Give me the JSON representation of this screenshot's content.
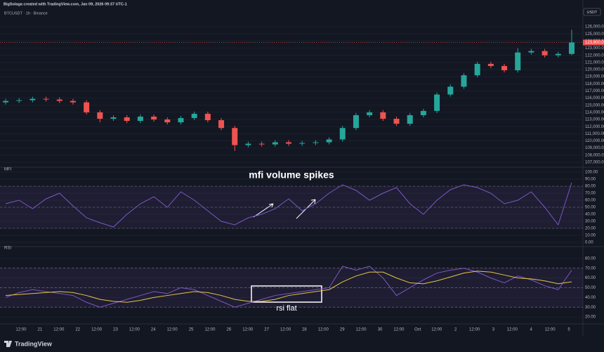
{
  "header": {
    "caption": "BigSolaga created with TradingView.com, Jan 09, 2026 09:37 UTC-1",
    "symbol": "BTCUSDT · 1h · Binance",
    "currency": "USDT",
    "brand": "TradingView"
  },
  "time_axis": [
    "12:00",
    "21",
    "12:00",
    "22",
    "12:00",
    "23",
    "12:00",
    "24",
    "12:00",
    "25",
    "12:00",
    "26",
    "12:00",
    "27",
    "12:00",
    "28",
    "12:00",
    "29",
    "12:00",
    "30",
    "12:00",
    "Oct",
    "12:00",
    "2",
    "12:00",
    "3",
    "12:00",
    "4",
    "12:00",
    "5"
  ],
  "chart_data": [
    {
      "type": "candlestick",
      "up_color": "#26a69a",
      "down_color": "#ef5350",
      "last_price_label": "123,800.00",
      "open": [
        115400,
        115600,
        115700,
        115900,
        115800,
        115600,
        115400,
        114000,
        113100,
        113300,
        112800,
        113400,
        113000,
        112600,
        113200,
        113800,
        112900,
        111800,
        109400,
        109600,
        109500,
        109800,
        109600,
        109700,
        109800,
        110200,
        111800,
        113600,
        114000,
        113100,
        112400,
        113600,
        114200,
        116500,
        117600,
        119200,
        120800,
        120500,
        119900,
        122400,
        122600,
        122000,
        122200
      ],
      "high": [
        115900,
        116000,
        116200,
        116200,
        116100,
        115900,
        115700,
        114300,
        113600,
        113600,
        113700,
        113700,
        113300,
        113500,
        114100,
        114100,
        113200,
        112100,
        109900,
        109900,
        110100,
        110100,
        110000,
        110100,
        110500,
        112100,
        113900,
        114300,
        114300,
        113400,
        113900,
        114500,
        116800,
        117900,
        119500,
        121100,
        121100,
        120800,
        123000,
        122900,
        122900,
        122500,
        125600
      ],
      "low": [
        115100,
        115300,
        115400,
        115500,
        115300,
        115100,
        113700,
        112600,
        112800,
        112500,
        112500,
        112700,
        112300,
        112300,
        112900,
        112600,
        111500,
        108600,
        109100,
        109200,
        109200,
        109300,
        109300,
        109400,
        109500,
        109900,
        111500,
        113300,
        112800,
        112100,
        112100,
        113300,
        113900,
        116200,
        117300,
        118900,
        120200,
        119600,
        119600,
        122100,
        121700,
        121700,
        122000
      ],
      "close": [
        115600,
        115700,
        115900,
        115800,
        115600,
        115400,
        114000,
        113100,
        113300,
        112800,
        113400,
        113000,
        112600,
        113200,
        113800,
        112900,
        111800,
        109400,
        109600,
        109500,
        109800,
        109600,
        109700,
        109800,
        110200,
        111800,
        113600,
        114000,
        113100,
        112400,
        113600,
        114200,
        116500,
        117600,
        119200,
        120800,
        120500,
        119900,
        122400,
        122600,
        122000,
        122200,
        123800
      ],
      "ylim": [
        106500,
        127000
      ],
      "yticks": [
        {
          "value": 107000,
          "label": "107,000.00"
        },
        {
          "value": 108000,
          "label": "108,000.00"
        },
        {
          "value": 109000,
          "label": "109,000.00"
        },
        {
          "value": 110000,
          "label": "110,000.00"
        },
        {
          "value": 111000,
          "label": "111,000.00"
        },
        {
          "value": 112000,
          "label": "112,000.00"
        },
        {
          "value": 113000,
          "label": "113,000.00"
        },
        {
          "value": 114000,
          "label": "114,000.00"
        },
        {
          "value": 115000,
          "label": "115,000.00"
        },
        {
          "value": 116000,
          "label": "116,000.00"
        },
        {
          "value": 117000,
          "label": "117,000.00"
        },
        {
          "value": 118000,
          "label": "118,000.00"
        },
        {
          "value": 119000,
          "label": "119,000.00"
        },
        {
          "value": 120000,
          "label": "120,000.00"
        },
        {
          "value": 121000,
          "label": "121,000.00"
        },
        {
          "value": 122000,
          "label": "122,000.00"
        },
        {
          "value": 123000,
          "label": "123,000.00"
        },
        {
          "value": 124000,
          "label": "124,000.00"
        },
        {
          "value": 125000,
          "label": "125,000.00"
        },
        {
          "value": 126000,
          "label": "126,000.00"
        }
      ]
    },
    {
      "type": "line",
      "title": "MFI",
      "annotation": "mfi volume spikes",
      "color": "#7e57c2",
      "bands": [
        20,
        50,
        80
      ],
      "values": [
        55,
        60,
        48,
        62,
        70,
        52,
        35,
        28,
        22,
        40,
        55,
        65,
        50,
        72,
        60,
        45,
        30,
        25,
        35,
        40,
        48,
        62,
        45,
        55,
        70,
        82,
        74,
        60,
        70,
        78,
        55,
        40,
        60,
        75,
        82,
        78,
        70,
        55,
        60,
        72,
        50,
        25,
        85
      ],
      "ylim": [
        -3,
        103
      ],
      "yticks": [
        {
          "value": 0,
          "label": "0.00"
        },
        {
          "value": 10,
          "label": "10.00"
        },
        {
          "value": 20,
          "label": "20.00"
        },
        {
          "value": 30,
          "label": "30.00"
        },
        {
          "value": 40,
          "label": "40.00"
        },
        {
          "value": 50,
          "label": "50.00"
        },
        {
          "value": 60,
          "label": "60.00"
        },
        {
          "value": 70,
          "label": "70.00"
        },
        {
          "value": 80,
          "label": "80.00"
        },
        {
          "value": 90,
          "label": "90.00"
        },
        {
          "value": 100,
          "label": "100.00"
        }
      ]
    },
    {
      "type": "line",
      "title": "RSI",
      "annotation": "rsi flat",
      "color": "#7e57c2",
      "ma_color": "#e8c547",
      "bands": [
        30,
        50,
        70
      ],
      "values": [
        40,
        45,
        48,
        46,
        44,
        42,
        35,
        30,
        34,
        38,
        42,
        46,
        44,
        50,
        48,
        42,
        36,
        30,
        34,
        38,
        42,
        44,
        46,
        48,
        50,
        72,
        68,
        72,
        60,
        42,
        50,
        58,
        65,
        68,
        70,
        66,
        60,
        55,
        62,
        58,
        52,
        48,
        68
      ],
      "ma_values": [
        42,
        43,
        44,
        45,
        46,
        45,
        42,
        38,
        36,
        35,
        37,
        40,
        42,
        44,
        46,
        45,
        42,
        38,
        36,
        36,
        38,
        42,
        44,
        46,
        48,
        56,
        62,
        66,
        66,
        60,
        55,
        54,
        57,
        61,
        65,
        67,
        66,
        63,
        60,
        59,
        57,
        54,
        56
      ],
      "ylim": [
        15,
        90
      ],
      "yticks": [
        {
          "value": 20,
          "label": "20.00"
        },
        {
          "value": 30,
          "label": "30.00"
        },
        {
          "value": 40,
          "label": "40.00"
        },
        {
          "value": 50,
          "label": "50.00"
        },
        {
          "value": 60,
          "label": "60.00"
        },
        {
          "value": 70,
          "label": "70.00"
        },
        {
          "value": 80,
          "label": "80.00"
        }
      ]
    }
  ]
}
